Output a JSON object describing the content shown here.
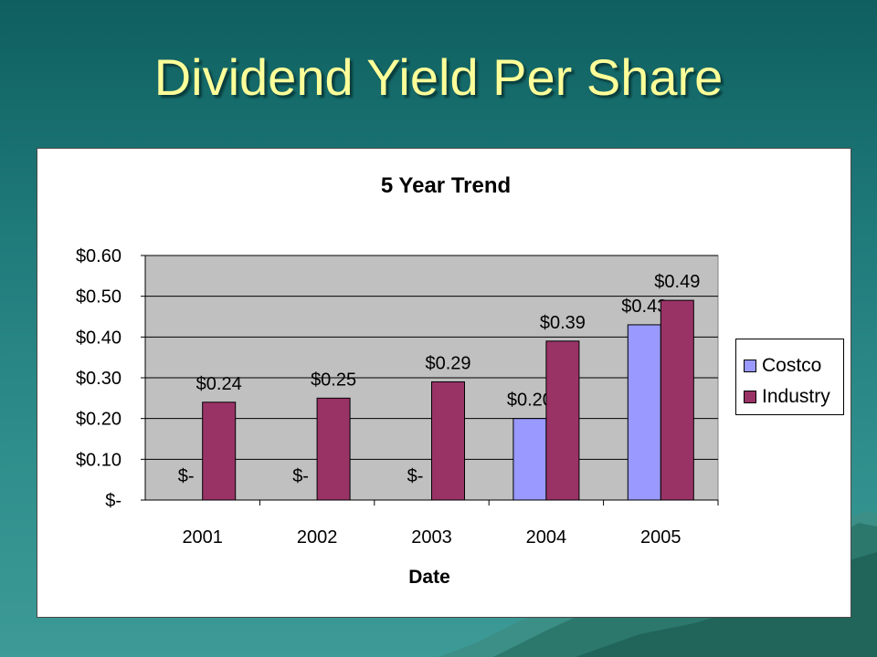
{
  "slide": {
    "title": "Dividend Yield Per Share"
  },
  "chart_data": {
    "type": "bar",
    "title": "5 Year Trend",
    "xlabel": "Date",
    "ylabel": "",
    "categories": [
      "2001",
      "2002",
      "2003",
      "2004",
      "2005"
    ],
    "series": [
      {
        "name": "Costco",
        "values": [
          0,
          0,
          0,
          0.2,
          0.43
        ],
        "labels": [
          "$-",
          "$-",
          "$-",
          "$0.20",
          "$0.43"
        ],
        "color": "#9999ff"
      },
      {
        "name": "Industry",
        "values": [
          0.24,
          0.25,
          0.29,
          0.39,
          0.49
        ],
        "labels": [
          "$0.24",
          "$0.25",
          "$0.29",
          "$0.39",
          "$0.49"
        ],
        "color": "#993366"
      }
    ],
    "ylim": [
      0,
      0.6
    ],
    "yticks": [
      0,
      0.1,
      0.2,
      0.3,
      0.4,
      0.5,
      0.6
    ],
    "ytick_labels": [
      "$-",
      "$0.10",
      "$0.20",
      "$0.30",
      "$0.40",
      "$0.50",
      "$0.60"
    ],
    "grid": true,
    "plot_background": "#c0c0c0",
    "legend_position": "right"
  }
}
